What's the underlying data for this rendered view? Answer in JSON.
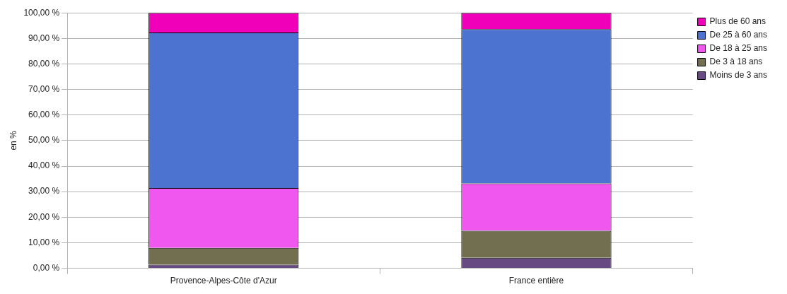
{
  "chart_data": {
    "type": "bar",
    "ylabel": "en %",
    "categories": [
      "Provence-Alpes-Côte d'Azur",
      "France entière"
    ],
    "stacked": true,
    "ylim": [
      0,
      100
    ],
    "yticks": [
      {
        "value": 0,
        "label": "0,00 %"
      },
      {
        "value": 10,
        "label": "10,00 %"
      },
      {
        "value": 20,
        "label": "20,00 %"
      },
      {
        "value": 30,
        "label": "30,00 %"
      },
      {
        "value": 40,
        "label": "40,00 %"
      },
      {
        "value": 50,
        "label": "50,00 %"
      },
      {
        "value": 60,
        "label": "60,00 %"
      },
      {
        "value": 70,
        "label": "70,00 %"
      },
      {
        "value": 80,
        "label": "80,00 %"
      },
      {
        "value": 90,
        "label": "90,00 %"
      },
      {
        "value": 100,
        "label": "100,00 %"
      }
    ],
    "grid": "y",
    "legend": "right",
    "series": [
      {
        "name": "Moins de 3 ans",
        "color": "#674a82",
        "values": [
          1.4,
          4.1
        ]
      },
      {
        "name": "De 3 à 18 ans",
        "color": "#726e50",
        "values": [
          6.6,
          10.6
        ]
      },
      {
        "name": "De 18 à 25 ans",
        "color": "#f057ee",
        "values": [
          23.4,
          18.5
        ]
      },
      {
        "name": "De 25 à 60 ans",
        "color": "#4b73cf",
        "values": [
          60.9,
          60.4
        ]
      },
      {
        "name": "Plus de 60 ans",
        "color": "#f000b8",
        "values": [
          7.7,
          6.4
        ]
      }
    ]
  }
}
